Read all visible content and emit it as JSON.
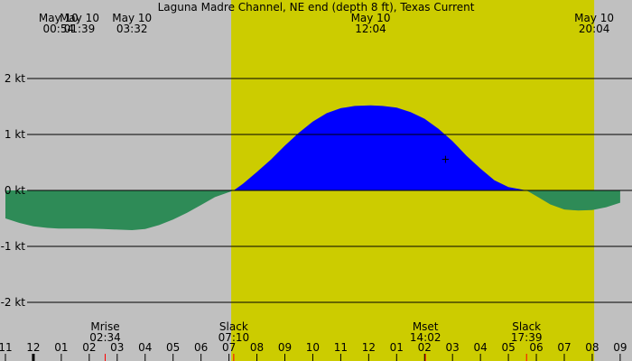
{
  "chart_data": {
    "type": "area",
    "title": "Laguna Madre Channel, NE end (depth 8 ft), Texas Current",
    "unit": "kt",
    "x_hours": [
      -1,
      20
    ],
    "y_range": [
      -2.4,
      2.4
    ],
    "y_ticks": [
      -2,
      -1,
      0,
      1,
      2
    ],
    "y_tick_labels": [
      "-2 kt",
      "-1 kt",
      "0 kt",
      "1 kt",
      "2 kt"
    ],
    "daylight": [
      7.08,
      20.07
    ],
    "colors": {
      "night": "#c0c0c0",
      "day": "#cccc00",
      "flood": "#0000ff",
      "ebb": "#2e8b57"
    },
    "series": [
      {
        "x": [
          -1.0,
          -0.5,
          0.0,
          0.5,
          0.9,
          1.5,
          2.0,
          2.5,
          3.0,
          3.53,
          4.0,
          4.5,
          5.0,
          5.5,
          6.0,
          6.5,
          7.17,
          7.5,
          8.0,
          8.5,
          9.0,
          9.5,
          10.0,
          10.5,
          11.0,
          11.5,
          12.07,
          12.5,
          13.0,
          13.5,
          14.0,
          14.5,
          15.0,
          15.5,
          16.0,
          16.5,
          17.0,
          17.65,
          18.0,
          18.5,
          19.0,
          19.5,
          20.0,
          20.5,
          21.0
        ],
        "y": [
          -0.5,
          -0.58,
          -0.64,
          -0.67,
          -0.68,
          -0.68,
          -0.68,
          -0.69,
          -0.7,
          -0.71,
          -0.69,
          -0.62,
          -0.52,
          -0.4,
          -0.26,
          -0.12,
          0.0,
          0.12,
          0.33,
          0.55,
          0.8,
          1.03,
          1.23,
          1.38,
          1.47,
          1.51,
          1.52,
          1.51,
          1.48,
          1.4,
          1.28,
          1.1,
          0.88,
          0.62,
          0.39,
          0.18,
          0.06,
          0.0,
          -0.1,
          -0.25,
          -0.34,
          -0.36,
          -0.35,
          -0.3,
          -0.22
        ]
      }
    ],
    "top_events": [
      {
        "date": "May 10",
        "time": "00:54",
        "hour": 0.9
      },
      {
        "date": "May 10",
        "time": "01:39",
        "hour": 1.65
      },
      {
        "date": "May 10",
        "time": "03:32",
        "hour": 3.53
      },
      {
        "date": "May 10",
        "time": "12:04",
        "hour": 12.07
      },
      {
        "date": "May 10",
        "time": "20:04",
        "hour": 20.07
      }
    ],
    "bottom_events": [
      {
        "label": "Mrise",
        "time": "02:34",
        "hour": 2.57,
        "tick": "red"
      },
      {
        "label": "Slack",
        "time": "07:10",
        "hour": 7.17,
        "tick": "red"
      },
      {
        "label": "Mset",
        "time": "14:02",
        "hour": 14.03,
        "tick": "red"
      },
      {
        "label": "Slack",
        "time": "17:39",
        "hour": 17.65,
        "tick": "red"
      }
    ],
    "x_tick_labels": [
      "11",
      "12",
      "01",
      "02",
      "03",
      "04",
      "05",
      "06",
      "07",
      "08",
      "09",
      "10",
      "11",
      "12",
      "01",
      "02",
      "03",
      "04",
      "05",
      "06",
      "07",
      "08",
      "09"
    ],
    "x_tick_start_hour": -1,
    "midnight_hour": 0,
    "marker": {
      "hour": 14.75,
      "value": 0.57,
      "symbol": "+"
    }
  }
}
